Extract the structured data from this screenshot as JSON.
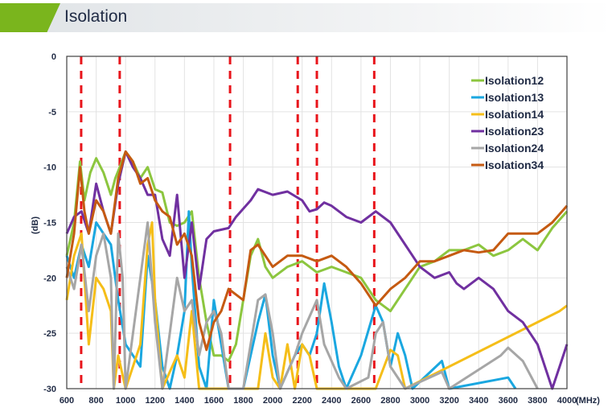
{
  "header": {
    "title": "Isolation",
    "accent_color": "#7ab51d"
  },
  "chart_data": {
    "type": "line",
    "title": "",
    "xlabel": "(MHz)",
    "ylabel": "(dB)",
    "xlim": [
      600,
      4000
    ],
    "ylim": [
      -30,
      0
    ],
    "xticks": [
      600,
      800,
      1000,
      1200,
      1400,
      1600,
      1800,
      2000,
      2200,
      2400,
      2600,
      2800,
      3000,
      3200,
      3400,
      3600,
      3800,
      4000
    ],
    "yticks": [
      0,
      -5,
      -10,
      -15,
      -20,
      -25,
      -30
    ],
    "grid": true,
    "legend": "top-right",
    "marker_lines": {
      "color": "#e8141b",
      "style": "dashed",
      "x": [
        698,
        960,
        1710,
        2170,
        2300,
        2690
      ]
    },
    "series": [
      {
        "name": "Isolation12",
        "color": "#8cc63f",
        "points": [
          [
            600,
            -18
          ],
          [
            650,
            -15
          ],
          [
            690,
            -9.5
          ],
          [
            720,
            -13
          ],
          [
            760,
            -10.5
          ],
          [
            800,
            -9.2
          ],
          [
            850,
            -10.5
          ],
          [
            900,
            -12.5
          ],
          [
            930,
            -11
          ],
          [
            960,
            -10
          ],
          [
            1000,
            -8.6
          ],
          [
            1050,
            -9.5
          ],
          [
            1100,
            -11
          ],
          [
            1150,
            -10
          ],
          [
            1200,
            -12
          ],
          [
            1250,
            -12.3
          ],
          [
            1300,
            -15
          ],
          [
            1350,
            -15.3
          ],
          [
            1400,
            -15
          ],
          [
            1450,
            -14
          ],
          [
            1500,
            -20
          ],
          [
            1550,
            -24
          ],
          [
            1600,
            -27
          ],
          [
            1650,
            -27
          ],
          [
            1700,
            -27.5
          ],
          [
            1750,
            -26
          ],
          [
            1800,
            -22
          ],
          [
            1850,
            -18
          ],
          [
            1900,
            -16.5
          ],
          [
            1950,
            -19
          ],
          [
            2000,
            -20
          ],
          [
            2100,
            -19
          ],
          [
            2200,
            -18.5
          ],
          [
            2300,
            -19.5
          ],
          [
            2400,
            -19
          ],
          [
            2500,
            -19.5
          ],
          [
            2600,
            -20
          ],
          [
            2700,
            -22
          ],
          [
            2800,
            -23
          ],
          [
            2900,
            -21
          ],
          [
            3000,
            -19
          ],
          [
            3100,
            -18.5
          ],
          [
            3200,
            -17.5
          ],
          [
            3300,
            -17.5
          ],
          [
            3400,
            -17
          ],
          [
            3500,
            -18
          ],
          [
            3600,
            -17.5
          ],
          [
            3700,
            -16.5
          ],
          [
            3800,
            -17.5
          ],
          [
            3900,
            -15.5
          ],
          [
            4000,
            -14
          ]
        ]
      },
      {
        "name": "Isolation13",
        "color": "#1aa7e0",
        "points": [
          [
            600,
            -18
          ],
          [
            650,
            -20
          ],
          [
            700,
            -17
          ],
          [
            750,
            -19
          ],
          [
            800,
            -15
          ],
          [
            850,
            -16
          ],
          [
            900,
            -17
          ],
          [
            950,
            -22
          ],
          [
            1000,
            -26
          ],
          [
            1050,
            -27
          ],
          [
            1100,
            -28
          ],
          [
            1150,
            -18
          ],
          [
            1200,
            -22
          ],
          [
            1250,
            -28
          ],
          [
            1300,
            -30
          ],
          [
            1350,
            -27
          ],
          [
            1400,
            -23
          ],
          [
            1430,
            -14
          ],
          [
            1450,
            -19
          ],
          [
            1500,
            -28
          ],
          [
            1550,
            -30
          ],
          [
            1600,
            -22
          ],
          [
            1650,
            -26
          ],
          [
            1700,
            -30
          ],
          [
            1800,
            -30
          ],
          [
            1900,
            -24
          ],
          [
            1950,
            -21.5
          ],
          [
            2000,
            -27
          ],
          [
            2050,
            -30
          ],
          [
            2150,
            -27
          ],
          [
            2200,
            -26
          ],
          [
            2250,
            -27
          ],
          [
            2300,
            -25
          ],
          [
            2350,
            -20.5
          ],
          [
            2400,
            -24
          ],
          [
            2450,
            -28
          ],
          [
            2500,
            -30
          ],
          [
            2600,
            -27
          ],
          [
            2700,
            -22.5
          ],
          [
            2750,
            -24
          ],
          [
            2800,
            -28
          ],
          [
            2850,
            -25
          ],
          [
            2900,
            -27
          ],
          [
            2950,
            -30
          ],
          [
            3150,
            -27.5
          ],
          [
            3200,
            -30
          ],
          [
            3600,
            -29
          ],
          [
            3650,
            -30
          ]
        ]
      },
      {
        "name": "Isolation14",
        "color": "#f5be19",
        "points": [
          [
            600,
            -22
          ],
          [
            650,
            -18
          ],
          [
            700,
            -16
          ],
          [
            750,
            -26
          ],
          [
            800,
            -20
          ],
          [
            850,
            -21
          ],
          [
            900,
            -23
          ],
          [
            920,
            -30
          ],
          [
            950,
            -27
          ],
          [
            1000,
            -30
          ],
          [
            1100,
            -26
          ],
          [
            1150,
            -17
          ],
          [
            1180,
            -15
          ],
          [
            1200,
            -22
          ],
          [
            1250,
            -30
          ],
          [
            1350,
            -27
          ],
          [
            1400,
            -29
          ],
          [
            1450,
            -23
          ],
          [
            1500,
            -30
          ],
          [
            1900,
            -30
          ],
          [
            1950,
            -25
          ],
          [
            2000,
            -29
          ],
          [
            2050,
            -30
          ],
          [
            2100,
            -26
          ],
          [
            2150,
            -30
          ],
          [
            2200,
            -26
          ],
          [
            2250,
            -27
          ],
          [
            2300,
            -30
          ],
          [
            2700,
            -30
          ],
          [
            2800,
            -26.5
          ],
          [
            2850,
            -27
          ],
          [
            2900,
            -30
          ],
          [
            3950,
            -23
          ],
          [
            4000,
            -22.5
          ]
        ]
      },
      {
        "name": "Isolation23",
        "color": "#7030a0",
        "points": [
          [
            600,
            -16
          ],
          [
            650,
            -14.5
          ],
          [
            700,
            -14
          ],
          [
            750,
            -16
          ],
          [
            800,
            -11.5
          ],
          [
            850,
            -14
          ],
          [
            900,
            -16
          ],
          [
            950,
            -11.5
          ],
          [
            1000,
            -8.6
          ],
          [
            1050,
            -10
          ],
          [
            1100,
            -11
          ],
          [
            1150,
            -12.5
          ],
          [
            1200,
            -12.5
          ],
          [
            1250,
            -16.5
          ],
          [
            1300,
            -18
          ],
          [
            1350,
            -12.5
          ],
          [
            1400,
            -20
          ],
          [
            1450,
            -15
          ],
          [
            1500,
            -21
          ],
          [
            1550,
            -16.5
          ],
          [
            1600,
            -15.8
          ],
          [
            1700,
            -15.5
          ],
          [
            1750,
            -14.5
          ],
          [
            1850,
            -13
          ],
          [
            1900,
            -12
          ],
          [
            2000,
            -12.5
          ],
          [
            2100,
            -12.2
          ],
          [
            2200,
            -13
          ],
          [
            2250,
            -14
          ],
          [
            2300,
            -13.8
          ],
          [
            2350,
            -13.2
          ],
          [
            2400,
            -13.5
          ],
          [
            2500,
            -14.5
          ],
          [
            2600,
            -15
          ],
          [
            2700,
            -14
          ],
          [
            2800,
            -15
          ],
          [
            2900,
            -17
          ],
          [
            3000,
            -19
          ],
          [
            3100,
            -20
          ],
          [
            3200,
            -19.5
          ],
          [
            3250,
            -20.5
          ],
          [
            3300,
            -21
          ],
          [
            3400,
            -20
          ],
          [
            3500,
            -21
          ],
          [
            3600,
            -23
          ],
          [
            3700,
            -24
          ],
          [
            3800,
            -26
          ],
          [
            3900,
            -30
          ],
          [
            3950,
            -28
          ],
          [
            4000,
            -26
          ]
        ]
      },
      {
        "name": "Isolation24",
        "color": "#a6a6a6",
        "points": [
          [
            600,
            -19
          ],
          [
            650,
            -21
          ],
          [
            700,
            -17
          ],
          [
            750,
            -23
          ],
          [
            800,
            -18
          ],
          [
            850,
            -16
          ],
          [
            900,
            -20
          ],
          [
            920,
            -30
          ],
          [
            950,
            -16
          ],
          [
            980,
            -20
          ],
          [
            1000,
            -30
          ],
          [
            1100,
            -20
          ],
          [
            1150,
            -15
          ],
          [
            1200,
            -24
          ],
          [
            1250,
            -30
          ],
          [
            1300,
            -25
          ],
          [
            1350,
            -20
          ],
          [
            1400,
            -23
          ],
          [
            1450,
            -22
          ],
          [
            1500,
            -27
          ],
          [
            1550,
            -24
          ],
          [
            1600,
            -23
          ],
          [
            1650,
            -25
          ],
          [
            1700,
            -30
          ],
          [
            1800,
            -30
          ],
          [
            1900,
            -22
          ],
          [
            1950,
            -21.5
          ],
          [
            2000,
            -25
          ],
          [
            2050,
            -30
          ],
          [
            2150,
            -27
          ],
          [
            2200,
            -25
          ],
          [
            2300,
            -22
          ],
          [
            2350,
            -26
          ],
          [
            2450,
            -29
          ],
          [
            2500,
            -30
          ],
          [
            2650,
            -29
          ],
          [
            2700,
            -25
          ],
          [
            2750,
            -24
          ],
          [
            2800,
            -28
          ],
          [
            2900,
            -30
          ],
          [
            3150,
            -28.5
          ],
          [
            3200,
            -30
          ],
          [
            3550,
            -27
          ],
          [
            3600,
            -26.3
          ],
          [
            3700,
            -27.5
          ],
          [
            3800,
            -30
          ]
        ]
      },
      {
        "name": "Isolation34",
        "color": "#c55a11",
        "points": [
          [
            600,
            -20
          ],
          [
            650,
            -16
          ],
          [
            690,
            -10
          ],
          [
            720,
            -14
          ],
          [
            750,
            -16
          ],
          [
            800,
            -13
          ],
          [
            850,
            -14
          ],
          [
            900,
            -16
          ],
          [
            950,
            -11
          ],
          [
            1000,
            -8.6
          ],
          [
            1050,
            -9.5
          ],
          [
            1100,
            -11.5
          ],
          [
            1150,
            -11
          ],
          [
            1200,
            -13
          ],
          [
            1250,
            -14
          ],
          [
            1300,
            -14.5
          ],
          [
            1350,
            -17
          ],
          [
            1400,
            -16
          ],
          [
            1450,
            -18
          ],
          [
            1500,
            -24
          ],
          [
            1550,
            -26.5
          ],
          [
            1600,
            -24
          ],
          [
            1650,
            -23
          ],
          [
            1700,
            -21
          ],
          [
            1800,
            -22
          ],
          [
            1850,
            -17.5
          ],
          [
            1900,
            -17
          ],
          [
            2000,
            -19
          ],
          [
            2100,
            -18
          ],
          [
            2200,
            -18
          ],
          [
            2300,
            -18.5
          ],
          [
            2400,
            -18
          ],
          [
            2500,
            -19
          ],
          [
            2600,
            -20.5
          ],
          [
            2700,
            -22.5
          ],
          [
            2800,
            -21
          ],
          [
            2900,
            -20
          ],
          [
            3000,
            -18.5
          ],
          [
            3100,
            -18.5
          ],
          [
            3200,
            -18
          ],
          [
            3300,
            -17.5
          ],
          [
            3400,
            -17.7
          ],
          [
            3500,
            -17.5
          ],
          [
            3600,
            -16
          ],
          [
            3700,
            -16
          ],
          [
            3800,
            -16
          ],
          [
            3900,
            -15
          ],
          [
            4000,
            -13.5
          ]
        ]
      }
    ]
  }
}
